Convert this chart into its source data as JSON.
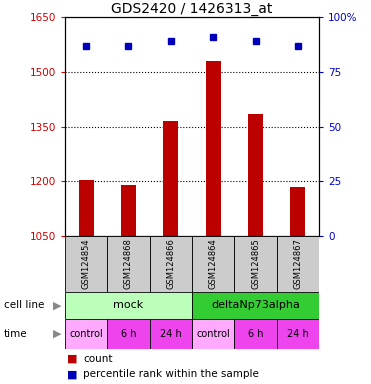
{
  "title": "GDS2420 / 1426313_at",
  "samples": [
    "GSM124854",
    "GSM124868",
    "GSM124866",
    "GSM124864",
    "GSM124865",
    "GSM124867"
  ],
  "counts": [
    1205,
    1190,
    1365,
    1530,
    1385,
    1185
  ],
  "percentile_ranks": [
    87,
    87,
    89,
    91,
    89,
    87
  ],
  "ylim_left": [
    1050,
    1650
  ],
  "ylim_right": [
    0,
    100
  ],
  "yticks_left": [
    1050,
    1200,
    1350,
    1500,
    1650
  ],
  "yticks_right": [
    0,
    25,
    50,
    75,
    100
  ],
  "bar_color": "#bb0000",
  "dot_color": "#0000bb",
  "cell_line_mock_color": "#bbffbb",
  "cell_line_delta_color": "#33cc33",
  "time_colors": [
    "#ffaaff",
    "#ee44ee",
    "#ee44ee",
    "#ffaaff",
    "#ee44ee",
    "#ee44ee"
  ],
  "sample_bg_color": "#cccccc",
  "cell_line_labels": [
    "mock",
    "deltaNp73alpha"
  ],
  "cell_line_spans": [
    [
      0,
      3
    ],
    [
      3,
      6
    ]
  ],
  "time_labels": [
    "control",
    "6 h",
    "24 h",
    "control",
    "6 h",
    "24 h"
  ],
  "left_axis_color": "#cc0000",
  "right_axis_color": "#0000cc"
}
